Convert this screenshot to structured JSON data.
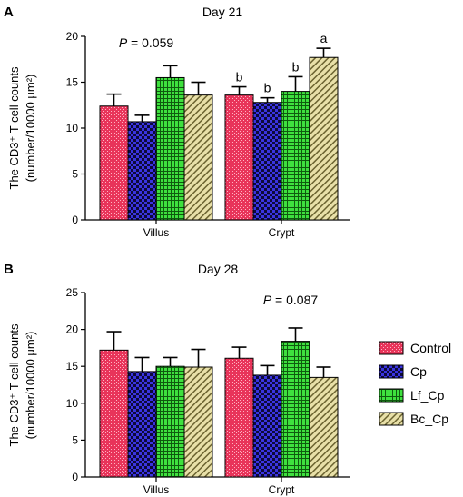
{
  "chart_data": [
    {
      "type": "bar",
      "panel": "A",
      "title": "Day 21",
      "ylabel_lines": [
        "The CD3⁺ T cell counts",
        "(number/10000 μm²)"
      ],
      "categories": [
        "Villus",
        "Crypt"
      ],
      "ylim": [
        0,
        20
      ],
      "yticks": [
        "0",
        "5",
        "10",
        "15",
        "20"
      ],
      "annotation": {
        "p_label": "P",
        "p_text": " = 0.059",
        "group": "Villus"
      },
      "series": [
        {
          "name": "Control",
          "values": [
            12.4,
            13.6
          ],
          "errors": [
            1.3,
            0.9
          ],
          "letters": [
            "",
            "b"
          ]
        },
        {
          "name": "Cp",
          "values": [
            10.7,
            12.8
          ],
          "errors": [
            0.7,
            0.5
          ],
          "letters": [
            "",
            "b"
          ]
        },
        {
          "name": "Lf_Cp",
          "values": [
            15.5,
            14.0
          ],
          "errors": [
            1.3,
            1.6
          ],
          "letters": [
            "",
            "b"
          ]
        },
        {
          "name": "Bc_Cp",
          "values": [
            13.6,
            17.7
          ],
          "errors": [
            1.4,
            1.0
          ],
          "letters": [
            "",
            "a"
          ]
        }
      ]
    },
    {
      "type": "bar",
      "panel": "B",
      "title": "Day 28",
      "ylabel_lines": [
        "The CD3⁺ T cell counts",
        "(number/10000 μm²)"
      ],
      "categories": [
        "Villus",
        "Crypt"
      ],
      "ylim": [
        0,
        25
      ],
      "yticks": [
        "0",
        "5",
        "10",
        "15",
        "20",
        "25"
      ],
      "annotation": {
        "p_label": "P",
        "p_text": " = 0.087",
        "group": "Crypt"
      },
      "series": [
        {
          "name": "Control",
          "values": [
            17.2,
            16.1
          ],
          "errors": [
            2.5,
            1.5
          ],
          "letters": [
            "",
            ""
          ]
        },
        {
          "name": "Cp",
          "values": [
            14.3,
            13.8
          ],
          "errors": [
            1.9,
            1.3
          ],
          "letters": [
            "",
            ""
          ]
        },
        {
          "name": "Lf_Cp",
          "values": [
            15.0,
            18.4
          ],
          "errors": [
            1.2,
            1.8
          ],
          "letters": [
            "",
            ""
          ]
        },
        {
          "name": "Bc_Cp",
          "values": [
            14.9,
            13.5
          ],
          "errors": [
            2.4,
            1.4
          ],
          "letters": [
            "",
            ""
          ]
        }
      ]
    }
  ],
  "legend": {
    "placement": "right",
    "items": [
      "Control",
      "Cp",
      "Lf_Cp",
      "Bc_Cp"
    ]
  },
  "colors": {
    "Control": "#e8345a",
    "Cp": "#3a34e0",
    "Lf_Cp": "#3ee03e",
    "Bc_Cp": "#e8e0a8"
  }
}
